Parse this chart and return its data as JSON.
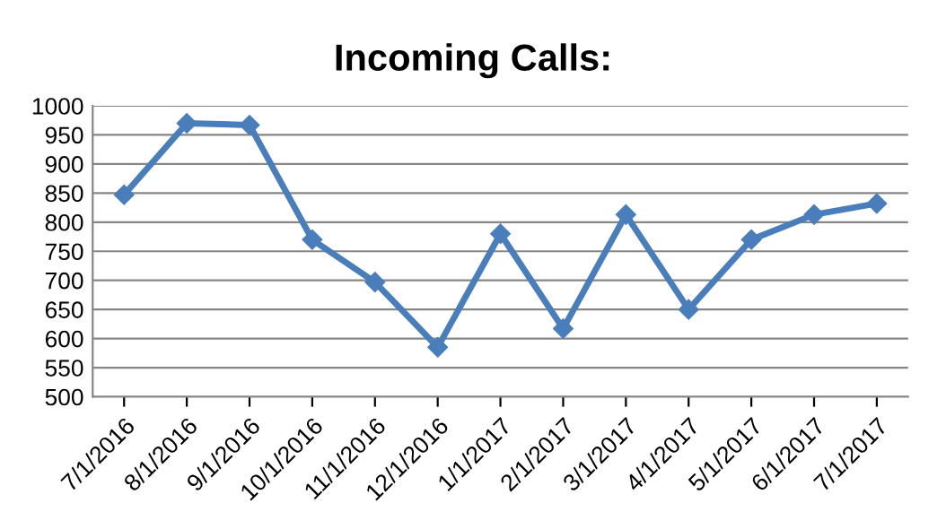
{
  "chart_data": {
    "type": "line",
    "title": "Incoming Calls:",
    "categories": [
      "7/1/2016",
      "8/1/2016",
      "9/1/2016",
      "10/1/2016",
      "11/1/2016",
      "12/1/2016",
      "1/1/2017",
      "2/1/2017",
      "3/1/2017",
      "4/1/2017",
      "5/1/2017",
      "6/1/2017",
      "7/1/2017"
    ],
    "series": [
      {
        "color": "#4a7ebb",
        "values": [
          847,
          970,
          967,
          770,
          697,
          585,
          780,
          617,
          813,
          650,
          770,
          813,
          832
        ]
      }
    ],
    "ylim": [
      500,
      1000
    ],
    "yticks": [
      500,
      550,
      600,
      650,
      700,
      750,
      800,
      850,
      900,
      950,
      1000
    ],
    "grid": "y",
    "marker": "diamond",
    "line_style": "solid"
  }
}
